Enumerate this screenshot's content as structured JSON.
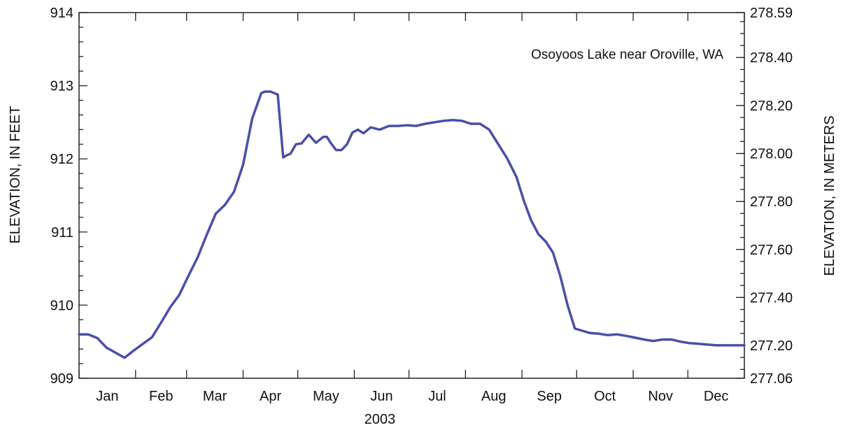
{
  "chart_data": {
    "type": "line",
    "annotation": "Osoyoos Lake near Oroville, WA",
    "xlabel": "2003",
    "ylabel": "ELEVATION, IN FEET",
    "ylabel_right": "ELEVATION, IN METERS",
    "ylim": [
      909,
      914
    ],
    "yticks": [
      909,
      910,
      911,
      912,
      913,
      914
    ],
    "yticks_right": [
      "277.06",
      "277.20",
      "277.40",
      "277.60",
      "277.80",
      "278.00",
      "278.20",
      "278.40",
      "278.59"
    ],
    "feet_per_meter": 3.28084,
    "xlim": [
      0,
      365
    ],
    "months": [
      "Jan",
      "Feb",
      "Mar",
      "Apr",
      "May",
      "Jun",
      "Jul",
      "Aug",
      "Sep",
      "Oct",
      "Nov",
      "Dec"
    ],
    "month_starts": [
      0,
      31,
      59,
      90,
      120,
      151,
      181,
      212,
      243,
      273,
      304,
      334,
      365
    ],
    "grid": false,
    "line_color": "#4a4fa8",
    "series": [
      {
        "x": [
          0,
          5,
          10,
          15,
          20,
          25,
          30,
          35,
          40,
          45,
          50,
          55,
          60,
          65,
          70,
          75,
          80,
          85,
          90,
          95,
          100,
          102,
          105,
          109,
          112,
          114,
          116,
          119,
          122,
          126,
          130,
          134,
          136,
          138,
          141,
          144,
          147,
          150,
          153,
          156,
          160,
          165,
          170,
          175,
          180,
          185,
          190,
          195,
          200,
          205,
          210,
          215,
          220,
          225,
          230,
          235,
          240,
          244,
          248,
          252,
          256,
          260,
          264,
          268,
          272,
          276,
          280,
          285,
          290,
          295,
          300,
          304,
          310,
          315,
          320,
          325,
          330,
          335,
          340,
          345,
          350,
          355,
          360,
          365
        ],
        "y": [
          909.6,
          909.6,
          909.55,
          909.42,
          909.35,
          909.28,
          909.38,
          909.47,
          909.56,
          909.76,
          909.97,
          910.14,
          910.4,
          910.65,
          910.96,
          911.25,
          911.37,
          911.55,
          911.92,
          912.55,
          912.9,
          912.92,
          912.92,
          912.88,
          912.02,
          912.05,
          912.07,
          912.2,
          912.21,
          912.33,
          912.22,
          912.3,
          912.3,
          912.22,
          912.12,
          912.12,
          912.2,
          912.36,
          912.4,
          912.35,
          912.43,
          912.4,
          912.45,
          912.45,
          912.46,
          912.45,
          912.48,
          912.5,
          912.52,
          912.53,
          912.52,
          912.48,
          912.48,
          912.4,
          912.2,
          912.0,
          911.75,
          911.43,
          911.16,
          910.97,
          910.87,
          910.72,
          910.4,
          910.0,
          909.68,
          909.65,
          909.62,
          909.61,
          909.59,
          909.6,
          909.58,
          909.56,
          909.53,
          909.51,
          909.53,
          909.53,
          909.5,
          909.48,
          909.47,
          909.46,
          909.45,
          909.45,
          909.45,
          909.45
        ]
      }
    ]
  }
}
